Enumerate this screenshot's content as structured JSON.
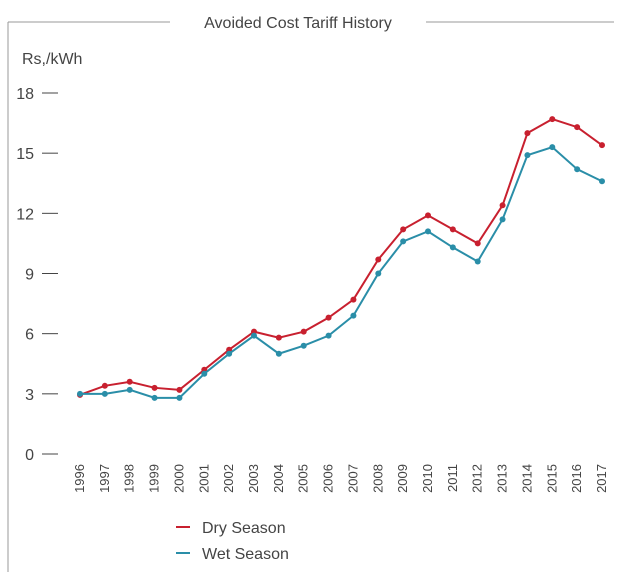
{
  "chart_data": {
    "type": "line",
    "title": "Avoided Cost Tariff History",
    "y_label": "Rs,/kWh",
    "categories": [
      "1996",
      "1997",
      "1998",
      "1999",
      "2000",
      "2001",
      "2002",
      "2003",
      "2004",
      "2005",
      "2006",
      "2007",
      "2008",
      "2009",
      "2010",
      "2011",
      "2012",
      "2013",
      "2014",
      "2015",
      "2016",
      "2017"
    ],
    "series": [
      {
        "name": "Dry Season",
        "color": "#c8202f",
        "values": [
          2.95,
          3.4,
          3.6,
          3.3,
          3.2,
          4.2,
          5.2,
          6.1,
          5.8,
          6.1,
          6.8,
          7.7,
          9.7,
          11.2,
          11.9,
          11.2,
          10.5,
          12.4,
          16.0,
          16.7,
          16.3,
          15.4
        ]
      },
      {
        "name": "Wet Season",
        "color": "#2a8ea8",
        "values": [
          3.0,
          3.0,
          3.2,
          2.8,
          2.8,
          4.0,
          5.0,
          5.9,
          5.0,
          5.4,
          5.9,
          6.9,
          9.0,
          10.6,
          11.1,
          10.3,
          9.6,
          11.7,
          14.9,
          15.3,
          14.2,
          13.6
        ]
      }
    ],
    "ylim": [
      0,
      18
    ],
    "yticks": [
      0,
      3,
      6,
      9,
      12,
      15,
      18
    ],
    "legend": "bottom"
  }
}
